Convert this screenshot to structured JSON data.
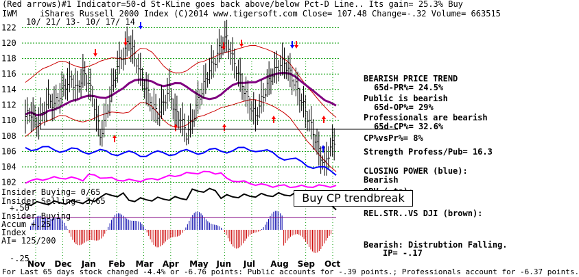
{
  "header": {
    "line1": "(Red arrows)#1 Indicator=50-d St-KLine goes back above/below Pct-D Line.. Its gain= 25.3% Buy",
    "ticker": "IWM",
    "line2": "iShares Russell 2000 Index   (C)2014 www.tigersoft.com    Close= 107.48  Change=-.32 Volume= 663515",
    "date_range": "10/ 21/ 13- 10/ 17/ 14"
  },
  "right_panel": {
    "trend_title": "BEARISH PRICE TREND",
    "pr_pct": "65d-PR%= 24.5%",
    "public_bearish": "Public is bearish",
    "op_pct": "65d-OP%= 29%",
    "prof_bearish": "Professionals are bearish",
    "cp_pct": "65d-CP%= 32.6%",
    "cp_vs_pr": "CP%vsPr%=  8%",
    "strength": "Strength Profess/Pub= 16.3",
    "closing_power_title": "CLOSING POWER (blue):",
    "closing_power_state": "Bearish",
    "obv_partial": "OBV (        ta):",
    "rel_str": "REL.STR..VS DJI (brown):",
    "accum_state": "Bearish: Distrubtion Falling.",
    "ip": "IP= -.17"
  },
  "left_panel": {
    "insider_buying": "Insider Buying= 0/65",
    "insider_selling": "Insider Selling= 3/65",
    "insider_buying2": "Insider Buying",
    "accum": "Accum  +.25",
    "index": "Index",
    "ai": "AI= 125/200",
    "plus50": "+.50",
    "minus25": "-.25"
  },
  "callout": "Buy CP trendbreak",
  "footer": "For Last 65 days stock changed -4.4% or -6.76 points:  Public accounts for -.39 points.;  Professionals account for -6.37 points.",
  "colors": {
    "price": "#000000",
    "bands": "#cc0000",
    "ma": "#800080",
    "closing_power": "#0000ff",
    "obv": "#ff00ff",
    "rel_str": "#000000",
    "accum_pos": "#0000aa",
    "accum_neg": "#cc0000",
    "grid": "#009900",
    "arrow_red": "#ff0000",
    "arrow_blue": "#0000ff"
  },
  "chart_data": {
    "type": "line",
    "title": "iShares Russell 2000 Index",
    "xlabel": "",
    "ylabel": "",
    "x_ticks": [
      "Nov",
      "Dec",
      "Jan",
      "Feb",
      "Mar",
      "Apr",
      "May",
      "Jun",
      "Jul",
      "Aug",
      "Sep",
      "Oct"
    ],
    "y_ticks": [
      122,
      120,
      118,
      116,
      114,
      112,
      110,
      108,
      106,
      104,
      102
    ],
    "ylim": [
      101,
      123
    ],
    "grid": true,
    "series": [
      {
        "name": "",
        "values": [
          110.5,
          111.0,
          109.6,
          110.8,
          112.8,
          112.0,
          113.3,
          114.6,
          115.3,
          114.0,
          116.0,
          115.0,
          112.0,
          108.0,
          110.5,
          114.0,
          117.0,
          118.5,
          120.3,
          118.4,
          116.0,
          114.0,
          112.0,
          110.8,
          112.3,
          114.0,
          111.0,
          110.3,
          108.2,
          110.0,
          112.5,
          114.5,
          116.5,
          117.8,
          119.8,
          120.6,
          118.0,
          116.0,
          114.0,
          112.0,
          110.5,
          112.5,
          114.5,
          116.0,
          117.0,
          117.5,
          116.0,
          114.5,
          112.5,
          110.5,
          108.5,
          106.0,
          104.2,
          106.5,
          107.48
        ]
      }
    ],
    "annotations": [
      "Buy CP trendbreak"
    ]
  }
}
